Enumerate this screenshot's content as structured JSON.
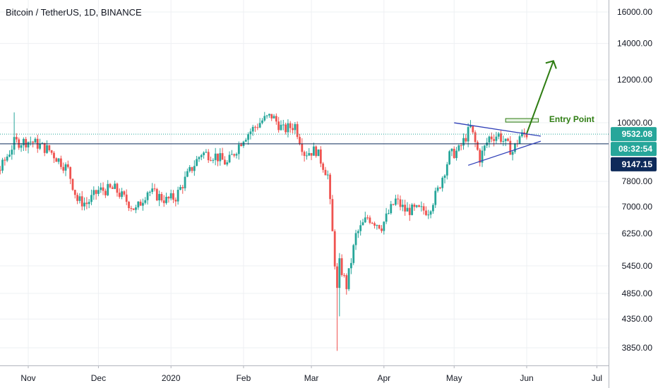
{
  "header": {
    "title": "Bitcoin / TetherUS, 1D, BINANCE"
  },
  "colors": {
    "up": "#26a69a",
    "down": "#ef5350",
    "grid": "#eef0f3",
    "axis_text": "#131722",
    "pattern": "#2f3fb8",
    "annotation": "#2e7d12",
    "last_price_badge": "#26a69a",
    "level_badge": "#0e2a5a"
  },
  "chart_data": {
    "type": "candlestick",
    "price_scale": "log",
    "y_ticks": [
      "16000.00",
      "14000.00",
      "12000.00",
      "10000.00",
      "7800.00",
      "7000.00",
      "6250.00",
      "5450.00",
      "4850.00",
      "4350.00",
      "3850.00"
    ],
    "x_ticks": [
      "Nov",
      "Dec",
      "2020",
      "Feb",
      "Mar",
      "Apr",
      "May",
      "Jun",
      "Jul"
    ],
    "x_tick_dates": [
      "2019-11-01",
      "2019-12-01",
      "2020-01-01",
      "2020-02-01",
      "2020-03-01",
      "2020-04-01",
      "2020-05-01",
      "2020-06-01",
      "2020-07-01"
    ],
    "last_price": {
      "label": "9532.08",
      "value": 9532.08
    },
    "countdown": "08:32:54",
    "level_line": {
      "label": "9147.15",
      "value": 9147.15
    },
    "close_path": [
      [
        "2019-10-20",
        8200
      ],
      [
        "2019-10-26",
        9200
      ],
      [
        "2019-11-02",
        9250
      ],
      [
        "2019-11-10",
        8900
      ],
      [
        "2019-11-18",
        8200
      ],
      [
        "2019-11-22",
        7200
      ],
      [
        "2019-11-26",
        7100
      ],
      [
        "2019-12-01",
        7500
      ],
      [
        "2019-12-08",
        7550
      ],
      [
        "2019-12-17",
        6900
      ],
      [
        "2019-12-22",
        7500
      ],
      [
        "2019-12-30",
        7200
      ],
      [
        "2020-01-03",
        7300
      ],
      [
        "2020-01-08",
        8000
      ],
      [
        "2020-01-14",
        8800
      ],
      [
        "2020-01-20",
        8700
      ],
      [
        "2020-01-25",
        8400
      ],
      [
        "2020-02-01",
        9400
      ],
      [
        "2020-02-09",
        10100
      ],
      [
        "2020-02-13",
        10300
      ],
      [
        "2020-02-18",
        9700
      ],
      [
        "2020-02-23",
        9900
      ],
      [
        "2020-02-27",
        8800
      ],
      [
        "2020-03-03",
        8900
      ],
      [
        "2020-03-08",
        8000
      ],
      [
        "2020-03-12",
        4900
      ],
      [
        "2020-03-13",
        5500
      ],
      [
        "2020-03-16",
        5000
      ],
      [
        "2020-03-20",
        6200
      ],
      [
        "2020-03-25",
        6700
      ],
      [
        "2020-03-31",
        6450
      ],
      [
        "2020-04-06",
        7200
      ],
      [
        "2020-04-10",
        6900
      ],
      [
        "2020-04-20",
        6900
      ],
      [
        "2020-04-24",
        7500
      ],
      [
        "2020-04-29",
        8700
      ],
      [
        "2020-05-03",
        8900
      ],
      [
        "2020-05-08",
        9800
      ],
      [
        "2020-05-12",
        8600
      ],
      [
        "2020-05-16",
        9400
      ],
      [
        "2020-05-20",
        9500
      ],
      [
        "2020-05-23",
        9150
      ],
      [
        "2020-05-26",
        8850
      ],
      [
        "2020-05-29",
        9450
      ],
      [
        "2020-06-01",
        9530
      ]
    ],
    "annotations": {
      "entry_label": "Entry Point",
      "entry_price": 10120,
      "triangle_upper": [
        [
          "2020-05-01",
          10000
        ],
        [
          "2020-06-07",
          9450
        ]
      ],
      "triangle_lower": [
        [
          "2020-05-07",
          8350
        ],
        [
          "2020-06-07",
          9250
        ]
      ],
      "arrow": [
        [
          "2020-06-01",
          9550
        ],
        [
          "2020-06-07",
          13000
        ]
      ]
    }
  }
}
